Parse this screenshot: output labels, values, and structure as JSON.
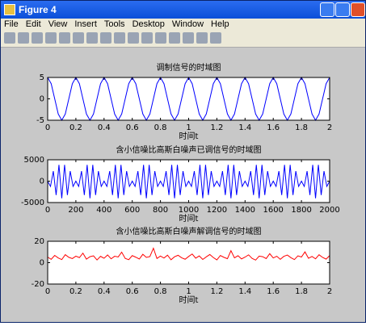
{
  "window": {
    "title": "Figure 4",
    "menus": [
      "File",
      "Edit",
      "View",
      "Insert",
      "Tools",
      "Desktop",
      "Window",
      "Help"
    ]
  },
  "chart_data": [
    {
      "type": "line",
      "title": "调制信号的时域图",
      "xlabel": "时间t",
      "color": "#0000ff",
      "x": [
        0,
        0.025,
        0.05,
        0.075,
        0.1,
        0.125,
        0.15,
        0.175,
        0.2,
        0.225,
        0.25,
        0.275,
        0.3,
        0.325,
        0.35,
        0.375,
        0.4,
        0.425,
        0.45,
        0.475,
        0.5,
        0.525,
        0.55,
        0.575,
        0.6,
        0.625,
        0.65,
        0.675,
        0.7,
        0.725,
        0.75,
        0.775,
        0.8,
        0.825,
        0.85,
        0.875,
        0.9,
        0.925,
        0.95,
        0.975,
        1,
        1.025,
        1.05,
        1.075,
        1.1,
        1.125,
        1.15,
        1.175,
        1.2,
        1.225,
        1.25,
        1.275,
        1.3,
        1.325,
        1.35,
        1.375,
        1.4,
        1.425,
        1.45,
        1.475,
        1.5,
        1.525,
        1.55,
        1.575,
        1.6,
        1.625,
        1.65,
        1.675,
        1.7,
        1.725,
        1.75,
        1.775,
        1.8,
        1.825,
        1.85,
        1.875,
        1.9,
        1.925,
        1.95,
        1.975,
        2
      ],
      "values": [
        5,
        3.54,
        0,
        -3.54,
        -5,
        -3.54,
        0,
        3.54,
        5,
        3.54,
        0,
        -3.54,
        -5,
        -3.54,
        0,
        3.54,
        5,
        3.54,
        0,
        -3.54,
        -5,
        -3.54,
        0,
        3.54,
        5,
        3.54,
        0,
        -3.54,
        -5,
        -3.54,
        0,
        3.54,
        5,
        3.54,
        0,
        -3.54,
        -5,
        -3.54,
        0,
        3.54,
        5,
        3.54,
        0,
        -3.54,
        -5,
        -3.54,
        0,
        3.54,
        5,
        3.54,
        0,
        -3.54,
        -5,
        -3.54,
        0,
        3.54,
        5,
        3.54,
        0,
        -3.54,
        -5,
        -3.54,
        0,
        3.54,
        5,
        3.54,
        0,
        -3.54,
        -5,
        -3.54,
        0,
        3.54,
        5,
        3.54,
        0,
        -3.54,
        -5,
        -3.54,
        0,
        3.54,
        5
      ],
      "xlim": [
        0,
        2
      ],
      "xticks": [
        0,
        0.2,
        0.4,
        0.6,
        0.8,
        1,
        1.2,
        1.4,
        1.6,
        1.8,
        2
      ],
      "ylim": [
        -5,
        5
      ],
      "yticks": [
        -5,
        0,
        5
      ]
    },
    {
      "type": "line",
      "title": "含小信噪比高斯白噪声已调信号的时域图",
      "xlabel": "时间t",
      "color": "#0000ff",
      "x": [
        0,
        20,
        40,
        60,
        80,
        100,
        120,
        140,
        160,
        180,
        200,
        220,
        240,
        260,
        280,
        300,
        320,
        340,
        360,
        380,
        400,
        420,
        440,
        460,
        480,
        500,
        520,
        540,
        560,
        580,
        600,
        620,
        640,
        660,
        680,
        700,
        720,
        740,
        760,
        780,
        800,
        820,
        840,
        860,
        880,
        900,
        920,
        940,
        960,
        980,
        1000,
        1020,
        1040,
        1060,
        1080,
        1100,
        1120,
        1140,
        1160,
        1180,
        1200,
        1220,
        1240,
        1260,
        1280,
        1300,
        1320,
        1340,
        1360,
        1380,
        1400,
        1420,
        1440,
        1460,
        1480,
        1500,
        1520,
        1540,
        1560,
        1580,
        1600,
        1620,
        1640,
        1660,
        1680,
        1700,
        1720,
        1740,
        1760,
        1780,
        1800,
        1820,
        1840,
        1860,
        1880,
        1900,
        1920,
        1940,
        1960,
        1980,
        2000
      ],
      "values": [
        0,
        -1236,
        2351,
        -3236,
        3804,
        -4000,
        3804,
        -3236,
        2351,
        -1236,
        0,
        -1236,
        2351,
        -3236,
        3804,
        -4000,
        3804,
        -3236,
        2351,
        -1236,
        0,
        -1236,
        2351,
        -3236,
        3804,
        -4000,
        3804,
        -3236,
        2351,
        -1236,
        0,
        -1236,
        2351,
        -3236,
        3804,
        -4000,
        3804,
        -3236,
        2351,
        -1236,
        0,
        -1236,
        2351,
        -3236,
        3804,
        -4000,
        3804,
        -3236,
        2351,
        -1236,
        0,
        -1236,
        2351,
        -3236,
        3804,
        -4000,
        3804,
        -3236,
        2351,
        -1236,
        0,
        -1236,
        2351,
        -3236,
        3804,
        -4000,
        3804,
        -3236,
        2351,
        -1236,
        0,
        -1236,
        2351,
        -3236,
        3804,
        -4000,
        3804,
        -3236,
        2351,
        -1236,
        0,
        -1236,
        2351,
        -3236,
        3804,
        -4000,
        3804,
        -3236,
        2351,
        -1236,
        0,
        -1236,
        2351,
        -3236,
        3804,
        -4000,
        3804,
        -3236,
        2351,
        -1236,
        0
      ],
      "xlim": [
        0,
        2000
      ],
      "xticks": [
        0,
        200,
        400,
        600,
        800,
        1000,
        1200,
        1400,
        1600,
        1800,
        2000
      ],
      "ylim": [
        -5000,
        5000
      ],
      "yticks": [
        -5000,
        0,
        5000
      ]
    },
    {
      "type": "line",
      "title": "含小信噪比高斯白噪声解调信号的时域图",
      "xlabel": "时间t",
      "color": "#ff0000",
      "x": [
        0,
        0.025,
        0.05,
        0.075,
        0.1,
        0.125,
        0.15,
        0.175,
        0.2,
        0.225,
        0.25,
        0.275,
        0.3,
        0.325,
        0.35,
        0.375,
        0.4,
        0.425,
        0.45,
        0.475,
        0.5,
        0.525,
        0.55,
        0.575,
        0.6,
        0.625,
        0.65,
        0.675,
        0.7,
        0.725,
        0.75,
        0.775,
        0.8,
        0.825,
        0.85,
        0.875,
        0.9,
        0.925,
        0.95,
        0.975,
        1,
        1.025,
        1.05,
        1.075,
        1.1,
        1.125,
        1.15,
        1.175,
        1.2,
        1.225,
        1.25,
        1.275,
        1.3,
        1.325,
        1.35,
        1.375,
        1.4,
        1.425,
        1.45,
        1.475,
        1.5,
        1.525,
        1.55,
        1.575,
        1.6,
        1.625,
        1.65,
        1.675,
        1.7,
        1.725,
        1.75,
        1.775,
        1.8,
        1.825,
        1.85,
        1.875,
        1.9,
        1.925,
        1.95,
        1.975,
        2
      ],
      "values": [
        5.2,
        3.1,
        6.8,
        4.4,
        2.9,
        7.5,
        5.0,
        3.8,
        6.1,
        4.7,
        8.9,
        3.3,
        5.6,
        6.4,
        2.5,
        5.9,
        4.1,
        7.2,
        3.6,
        6.0,
        5.3,
        9.8,
        4.0,
        2.8,
        6.6,
        5.1,
        3.4,
        7.8,
        4.9,
        5.7,
        13.5,
        3.9,
        6.2,
        4.3,
        7.0,
        2.7,
        5.5,
        6.9,
        4.6,
        3.2,
        5.8,
        8.1,
        4.2,
        6.3,
        3.0,
        5.4,
        7.6,
        4.8,
        2.6,
        6.7,
        5.0,
        3.7,
        11.2,
        4.5,
        6.5,
        3.5,
        5.2,
        7.3,
        4.0,
        2.4,
        6.1,
        5.6,
        3.8,
        8.4,
        4.4,
        6.0,
        3.1,
        5.9,
        7.1,
        4.7,
        2.9,
        6.4,
        5.3,
        10.1,
        4.1,
        5.8,
        3.6,
        7.4,
        4.9,
        3.3,
        6.6
      ],
      "xlim": [
        0,
        2
      ],
      "xticks": [
        0,
        0.2,
        0.4,
        0.6,
        0.8,
        1,
        1.2,
        1.4,
        1.6,
        1.8,
        2
      ],
      "ylim": [
        -20,
        20
      ],
      "yticks": [
        -20,
        0,
        20
      ]
    }
  ]
}
